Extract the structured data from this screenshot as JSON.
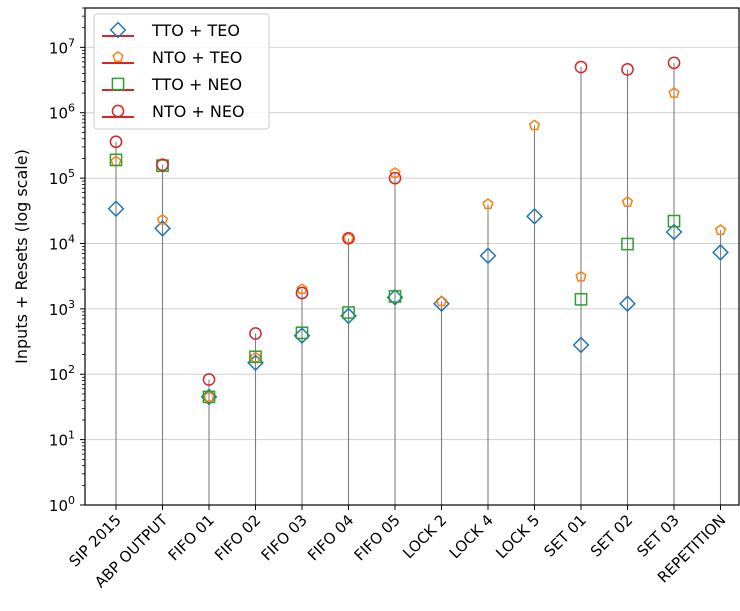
{
  "chart_data": {
    "type": "scatter",
    "title": "",
    "xlabel": "",
    "ylabel": "Inputs + Resets (log scale)",
    "y_scale": "log",
    "ylim": [
      1,
      40000000
    ],
    "y_ticks": [
      {
        "value": 1,
        "base": "10",
        "exp": "0"
      },
      {
        "value": 10,
        "base": "10",
        "exp": "1"
      },
      {
        "value": 100,
        "base": "10",
        "exp": "2"
      },
      {
        "value": 1000,
        "base": "10",
        "exp": "3"
      },
      {
        "value": 10000,
        "base": "10",
        "exp": "4"
      },
      {
        "value": 100000,
        "base": "10",
        "exp": "5"
      },
      {
        "value": 1000000,
        "base": "10",
        "exp": "6"
      },
      {
        "value": 10000000,
        "base": "10",
        "exp": "7"
      }
    ],
    "grid": "horizontal",
    "legend_position": "top-left",
    "categories": [
      "SIP 2015",
      "ABP OUTPUT",
      "FIFO 01",
      "FIFO 02",
      "FIFO 03",
      "FIFO 04",
      "FIFO 05",
      "LOCK 2",
      "LOCK 4",
      "LOCK 5",
      "SET 01",
      "SET 02",
      "SET 03",
      "REPETITION"
    ],
    "series": [
      {
        "name": "TTO + TEO",
        "marker": "diamond",
        "color": "#1f77b4",
        "values": [
          34000,
          17000,
          45,
          150,
          390,
          780,
          1500,
          1200,
          6500,
          26000,
          280,
          1200,
          15000,
          7300
        ]
      },
      {
        "name": "NTO + TEO",
        "marker": "pentagon",
        "color": "#ff7f0e",
        "values": [
          180000,
          23000,
          45,
          180,
          2000,
          12000,
          120000,
          1300,
          40000,
          640000,
          3100,
          43000,
          2000000,
          16000
        ]
      },
      {
        "name": "TTO + NEO",
        "marker": "square",
        "color": "#2ca02c",
        "values": [
          190000,
          155000,
          45,
          185,
          430,
          880,
          1550,
          null,
          null,
          null,
          1400,
          9800,
          22000,
          null
        ]
      },
      {
        "name": "NTO + NEO",
        "marker": "circle",
        "color": "#d62728",
        "values": [
          360000,
          160000,
          83,
          420,
          1750,
          12000,
          100000,
          null,
          null,
          null,
          5000000,
          4600000,
          5800000,
          null
        ]
      }
    ],
    "legend_line_color": "#d62728",
    "stem_color": "#808080"
  }
}
